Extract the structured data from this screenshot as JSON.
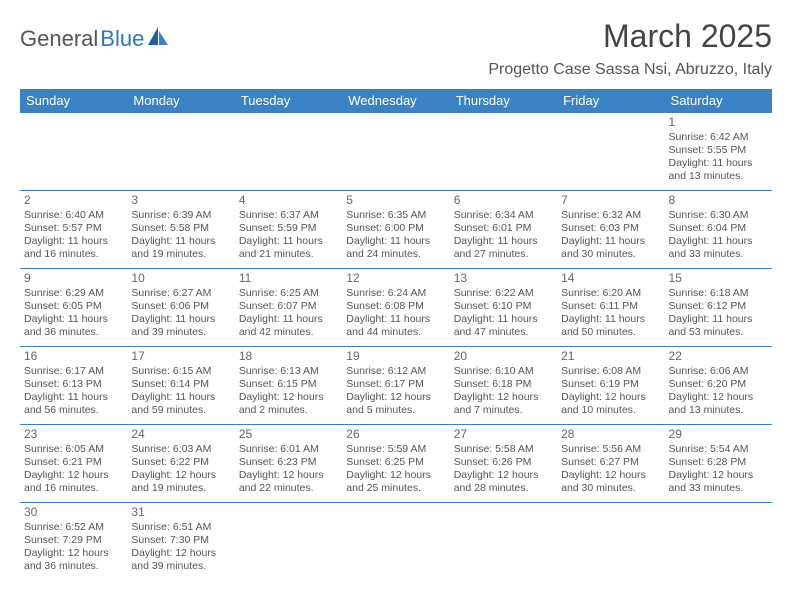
{
  "brand": {
    "part1": "General",
    "part2": "Blue"
  },
  "title": "March 2025",
  "location": "Progetto Case Sassa Nsi, Abruzzo, Italy",
  "colors": {
    "header_bg": "#3b82c4",
    "header_text": "#ffffff",
    "border": "#3b82c4",
    "text": "#555555",
    "brand_accent": "#2e77b8",
    "background": "#ffffff"
  },
  "typography": {
    "title_fontsize": 32,
    "location_fontsize": 16,
    "dayheader_fontsize": 13,
    "cell_fontsize": 10.5,
    "daynum_fontsize": 12
  },
  "day_headers": [
    "Sunday",
    "Monday",
    "Tuesday",
    "Wednesday",
    "Thursday",
    "Friday",
    "Saturday"
  ],
  "weeks": [
    [
      null,
      null,
      null,
      null,
      null,
      null,
      {
        "n": "1",
        "sr": "Sunrise: 6:42 AM",
        "ss": "Sunset: 5:55 PM",
        "d1": "Daylight: 11 hours",
        "d2": "and 13 minutes."
      }
    ],
    [
      {
        "n": "2",
        "sr": "Sunrise: 6:40 AM",
        "ss": "Sunset: 5:57 PM",
        "d1": "Daylight: 11 hours",
        "d2": "and 16 minutes."
      },
      {
        "n": "3",
        "sr": "Sunrise: 6:39 AM",
        "ss": "Sunset: 5:58 PM",
        "d1": "Daylight: 11 hours",
        "d2": "and 19 minutes."
      },
      {
        "n": "4",
        "sr": "Sunrise: 6:37 AM",
        "ss": "Sunset: 5:59 PM",
        "d1": "Daylight: 11 hours",
        "d2": "and 21 minutes."
      },
      {
        "n": "5",
        "sr": "Sunrise: 6:35 AM",
        "ss": "Sunset: 6:00 PM",
        "d1": "Daylight: 11 hours",
        "d2": "and 24 minutes."
      },
      {
        "n": "6",
        "sr": "Sunrise: 6:34 AM",
        "ss": "Sunset: 6:01 PM",
        "d1": "Daylight: 11 hours",
        "d2": "and 27 minutes."
      },
      {
        "n": "7",
        "sr": "Sunrise: 6:32 AM",
        "ss": "Sunset: 6:03 PM",
        "d1": "Daylight: 11 hours",
        "d2": "and 30 minutes."
      },
      {
        "n": "8",
        "sr": "Sunrise: 6:30 AM",
        "ss": "Sunset: 6:04 PM",
        "d1": "Daylight: 11 hours",
        "d2": "and 33 minutes."
      }
    ],
    [
      {
        "n": "9",
        "sr": "Sunrise: 6:29 AM",
        "ss": "Sunset: 6:05 PM",
        "d1": "Daylight: 11 hours",
        "d2": "and 36 minutes."
      },
      {
        "n": "10",
        "sr": "Sunrise: 6:27 AM",
        "ss": "Sunset: 6:06 PM",
        "d1": "Daylight: 11 hours",
        "d2": "and 39 minutes."
      },
      {
        "n": "11",
        "sr": "Sunrise: 6:25 AM",
        "ss": "Sunset: 6:07 PM",
        "d1": "Daylight: 11 hours",
        "d2": "and 42 minutes."
      },
      {
        "n": "12",
        "sr": "Sunrise: 6:24 AM",
        "ss": "Sunset: 6:08 PM",
        "d1": "Daylight: 11 hours",
        "d2": "and 44 minutes."
      },
      {
        "n": "13",
        "sr": "Sunrise: 6:22 AM",
        "ss": "Sunset: 6:10 PM",
        "d1": "Daylight: 11 hours",
        "d2": "and 47 minutes."
      },
      {
        "n": "14",
        "sr": "Sunrise: 6:20 AM",
        "ss": "Sunset: 6:11 PM",
        "d1": "Daylight: 11 hours",
        "d2": "and 50 minutes."
      },
      {
        "n": "15",
        "sr": "Sunrise: 6:18 AM",
        "ss": "Sunset: 6:12 PM",
        "d1": "Daylight: 11 hours",
        "d2": "and 53 minutes."
      }
    ],
    [
      {
        "n": "16",
        "sr": "Sunrise: 6:17 AM",
        "ss": "Sunset: 6:13 PM",
        "d1": "Daylight: 11 hours",
        "d2": "and 56 minutes."
      },
      {
        "n": "17",
        "sr": "Sunrise: 6:15 AM",
        "ss": "Sunset: 6:14 PM",
        "d1": "Daylight: 11 hours",
        "d2": "and 59 minutes."
      },
      {
        "n": "18",
        "sr": "Sunrise: 6:13 AM",
        "ss": "Sunset: 6:15 PM",
        "d1": "Daylight: 12 hours",
        "d2": "and 2 minutes."
      },
      {
        "n": "19",
        "sr": "Sunrise: 6:12 AM",
        "ss": "Sunset: 6:17 PM",
        "d1": "Daylight: 12 hours",
        "d2": "and 5 minutes."
      },
      {
        "n": "20",
        "sr": "Sunrise: 6:10 AM",
        "ss": "Sunset: 6:18 PM",
        "d1": "Daylight: 12 hours",
        "d2": "and 7 minutes."
      },
      {
        "n": "21",
        "sr": "Sunrise: 6:08 AM",
        "ss": "Sunset: 6:19 PM",
        "d1": "Daylight: 12 hours",
        "d2": "and 10 minutes."
      },
      {
        "n": "22",
        "sr": "Sunrise: 6:06 AM",
        "ss": "Sunset: 6:20 PM",
        "d1": "Daylight: 12 hours",
        "d2": "and 13 minutes."
      }
    ],
    [
      {
        "n": "23",
        "sr": "Sunrise: 6:05 AM",
        "ss": "Sunset: 6:21 PM",
        "d1": "Daylight: 12 hours",
        "d2": "and 16 minutes."
      },
      {
        "n": "24",
        "sr": "Sunrise: 6:03 AM",
        "ss": "Sunset: 6:22 PM",
        "d1": "Daylight: 12 hours",
        "d2": "and 19 minutes."
      },
      {
        "n": "25",
        "sr": "Sunrise: 6:01 AM",
        "ss": "Sunset: 6:23 PM",
        "d1": "Daylight: 12 hours",
        "d2": "and 22 minutes."
      },
      {
        "n": "26",
        "sr": "Sunrise: 5:59 AM",
        "ss": "Sunset: 6:25 PM",
        "d1": "Daylight: 12 hours",
        "d2": "and 25 minutes."
      },
      {
        "n": "27",
        "sr": "Sunrise: 5:58 AM",
        "ss": "Sunset: 6:26 PM",
        "d1": "Daylight: 12 hours",
        "d2": "and 28 minutes."
      },
      {
        "n": "28",
        "sr": "Sunrise: 5:56 AM",
        "ss": "Sunset: 6:27 PM",
        "d1": "Daylight: 12 hours",
        "d2": "and 30 minutes."
      },
      {
        "n": "29",
        "sr": "Sunrise: 5:54 AM",
        "ss": "Sunset: 6:28 PM",
        "d1": "Daylight: 12 hours",
        "d2": "and 33 minutes."
      }
    ],
    [
      {
        "n": "30",
        "sr": "Sunrise: 6:52 AM",
        "ss": "Sunset: 7:29 PM",
        "d1": "Daylight: 12 hours",
        "d2": "and 36 minutes."
      },
      {
        "n": "31",
        "sr": "Sunrise: 6:51 AM",
        "ss": "Sunset: 7:30 PM",
        "d1": "Daylight: 12 hours",
        "d2": "and 39 minutes."
      },
      null,
      null,
      null,
      null,
      null
    ]
  ]
}
